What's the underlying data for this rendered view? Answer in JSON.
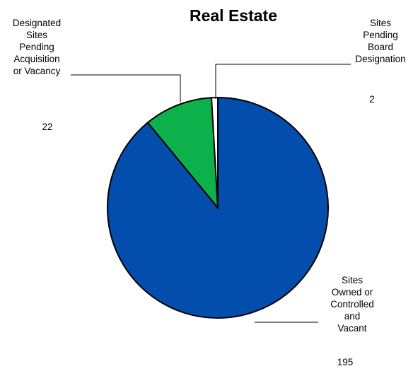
{
  "chart_data": {
    "type": "pie",
    "title": "Real Estate",
    "slices": [
      {
        "label": [
          "Sites",
          "Owned or",
          "Controlled",
          "and",
          "Vacant"
        ],
        "value": 195,
        "color": "#034EAD"
      },
      {
        "label": [
          "Designated",
          "Sites",
          "Pending",
          "Acquisition",
          "or Vacancy"
        ],
        "value": 22,
        "color": "#0DB14B"
      },
      {
        "label": [
          "Sites",
          "Pending",
          "Board",
          "Designation"
        ],
        "value": 2,
        "color": "#FFFFFF"
      }
    ],
    "legend": "none"
  }
}
